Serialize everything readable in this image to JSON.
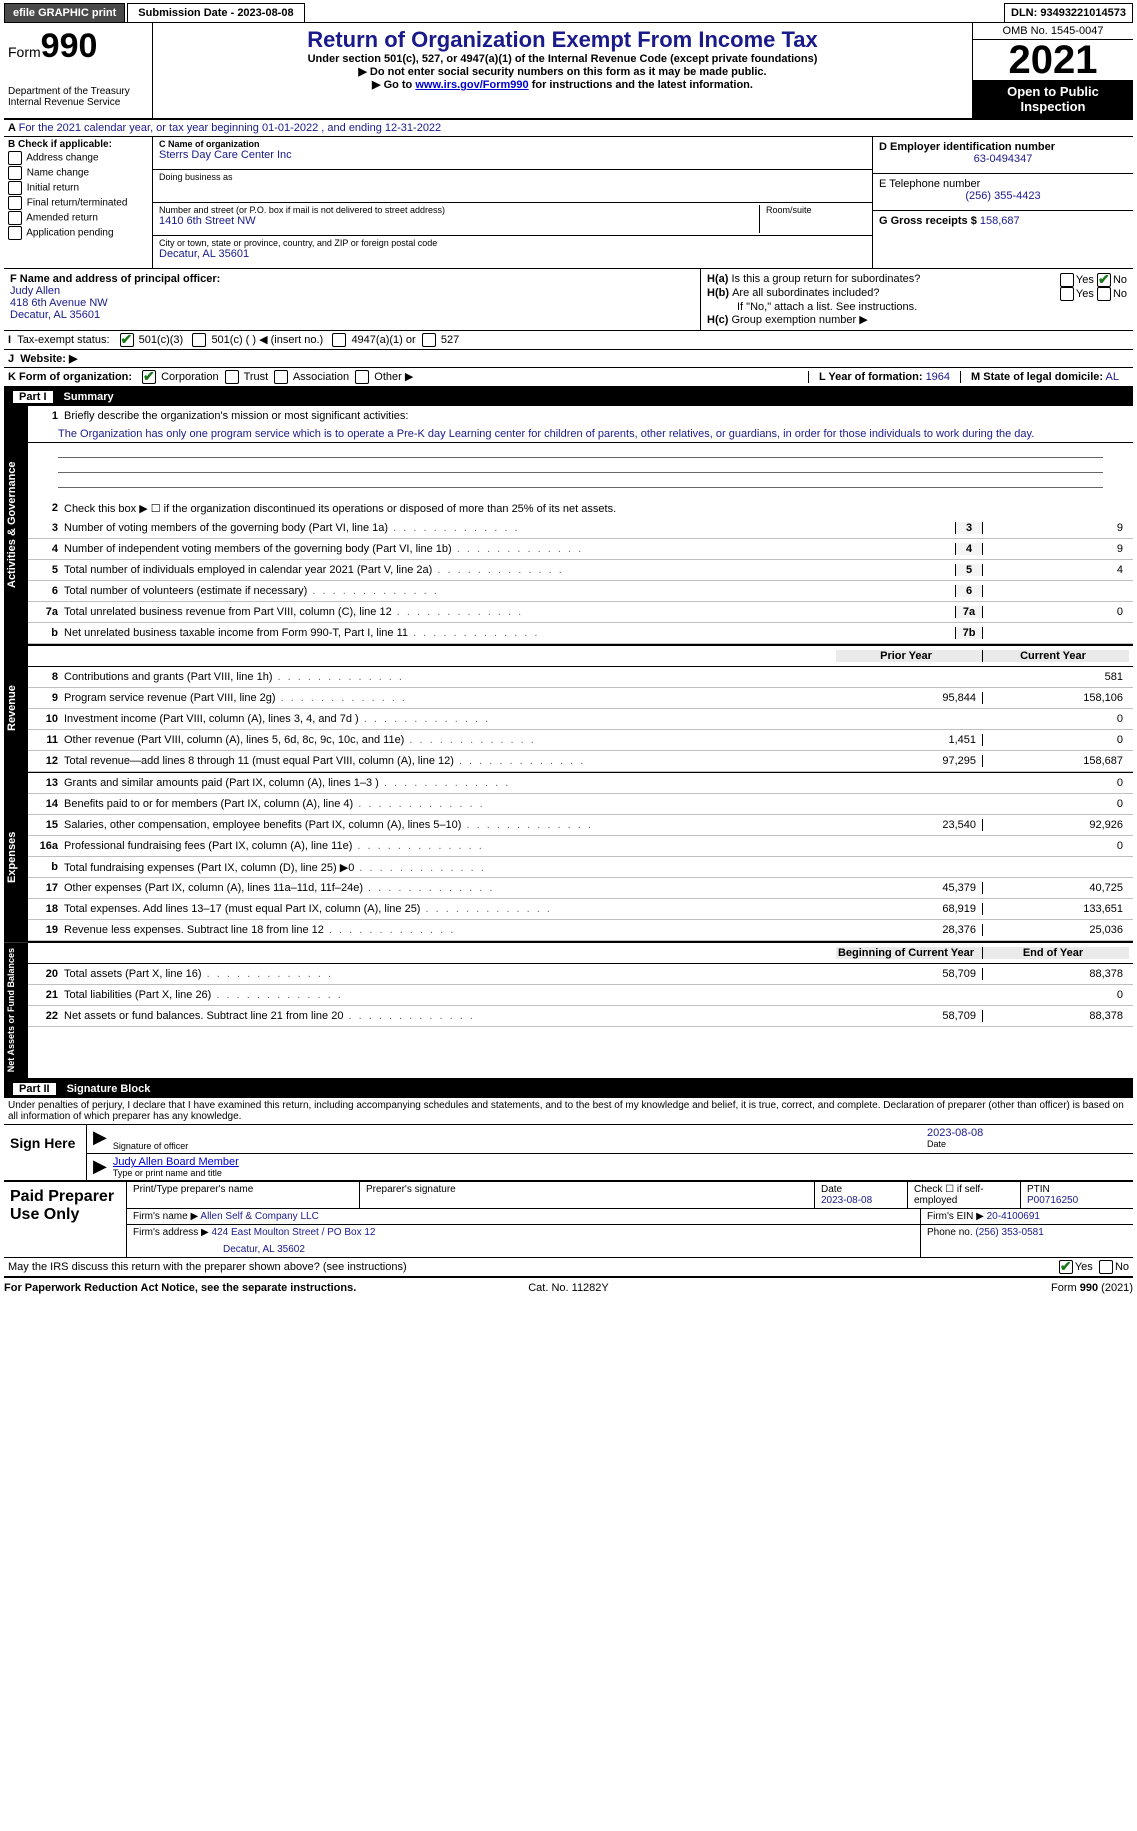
{
  "topbar": {
    "efile": "efile GRAPHIC print",
    "submission_label": "Submission Date - 2023-08-08",
    "dln": "DLN: 93493221014573"
  },
  "header": {
    "form_prefix": "Form",
    "form_number": "990",
    "dept": "Department of the Treasury",
    "irs": "Internal Revenue Service",
    "title": "Return of Organization Exempt From Income Tax",
    "subtitle": "Under section 501(c), 527, or 4947(a)(1) of the Internal Revenue Code (except private foundations)",
    "note1": "Do not enter social security numbers on this form as it may be made public.",
    "note2_prefix": "Go to ",
    "note2_link": "www.irs.gov/Form990",
    "note2_suffix": " for instructions and the latest information.",
    "omb": "OMB No. 1545-0047",
    "year": "2021",
    "opentag": "Open to Public Inspection"
  },
  "line_a": "For the 2021 calendar year, or tax year beginning 01-01-2022   , and ending 12-31-2022",
  "boxB": {
    "header": "B Check if applicable:",
    "items": [
      "Address change",
      "Name change",
      "Initial return",
      "Final return/terminated",
      "Amended return",
      "Application pending"
    ]
  },
  "boxC": {
    "label_c": "C Name of organization",
    "org_name": "Sterrs Day Care Center Inc",
    "dba_label": "Doing business as",
    "addr_label": "Number and street (or P.O. box if mail is not delivered to street address)",
    "room_label": "Room/suite",
    "addr": "1410 6th Street NW",
    "city_label": "City or town, state or province, country, and ZIP or foreign postal code",
    "city": "Decatur, AL  35601"
  },
  "boxD": {
    "label": "D Employer identification number",
    "ein": "63-0494347"
  },
  "boxE": {
    "label": "E Telephone number",
    "phone": "(256) 355-4423"
  },
  "boxG": {
    "label": "G Gross receipts $",
    "amount": "158,687"
  },
  "boxF": {
    "label": "F  Name and address of principal officer:",
    "name": "Judy Allen",
    "addr1": "418 6th Avenue NW",
    "addr2": "Decatur, AL  35601"
  },
  "boxH": {
    "ha": "Is this a group return for subordinates?",
    "hb": "Are all subordinates included?",
    "hb_note": "If \"No,\" attach a list. See instructions.",
    "hc": "Group exemption number ▶",
    "yes": "Yes",
    "no": "No"
  },
  "boxI": {
    "label": "Tax-exempt status:",
    "o1": "501(c)(3)",
    "o2": "501(c) (  ) ◀ (insert no.)",
    "o3": "4947(a)(1) or",
    "o4": "527"
  },
  "boxJ": {
    "label": "Website: ▶"
  },
  "boxK": {
    "label": "K Form of organization:",
    "o1": "Corporation",
    "o2": "Trust",
    "o3": "Association",
    "o4": "Other ▶"
  },
  "boxL": {
    "label": "L Year of formation:",
    "val": "1964"
  },
  "boxM": {
    "label": "M State of legal domicile:",
    "val": "AL"
  },
  "part1": {
    "label": "Part I",
    "title": "Summary",
    "q1": "Briefly describe the organization's mission or most significant activities:",
    "mission": "The Organization has only one program service which is to operate a Pre-K day Learning center for children of parents, other relatives, or guardians, in order for those individuals to work during the day.",
    "q2": "Check this box ▶ ☐ if the organization discontinued its operations or disposed of more than 25% of its net assets."
  },
  "governance_tab": "Activities & Governance",
  "revenue_tab": "Revenue",
  "expenses_tab": "Expenses",
  "netassets_tab": "Net Assets or Fund Balances",
  "lines_gov": [
    {
      "n": "3",
      "d": "Number of voting members of the governing body (Part VI, line 1a)",
      "box": "3",
      "v": "9"
    },
    {
      "n": "4",
      "d": "Number of independent voting members of the governing body (Part VI, line 1b)",
      "box": "4",
      "v": "9"
    },
    {
      "n": "5",
      "d": "Total number of individuals employed in calendar year 2021 (Part V, line 2a)",
      "box": "5",
      "v": "4"
    },
    {
      "n": "6",
      "d": "Total number of volunteers (estimate if necessary)",
      "box": "6",
      "v": ""
    },
    {
      "n": "7a",
      "d": "Total unrelated business revenue from Part VIII, column (C), line 12",
      "box": "7a",
      "v": "0"
    },
    {
      "n": "b",
      "d": "Net unrelated business taxable income from Form 990-T, Part I, line 11",
      "box": "7b",
      "v": ""
    }
  ],
  "col_hdr": {
    "prior": "Prior Year",
    "current": "Current Year"
  },
  "lines_rev": [
    {
      "n": "8",
      "d": "Contributions and grants (Part VIII, line 1h)",
      "p": "",
      "c": "581"
    },
    {
      "n": "9",
      "d": "Program service revenue (Part VIII, line 2g)",
      "p": "95,844",
      "c": "158,106"
    },
    {
      "n": "10",
      "d": "Investment income (Part VIII, column (A), lines 3, 4, and 7d )",
      "p": "",
      "c": "0"
    },
    {
      "n": "11",
      "d": "Other revenue (Part VIII, column (A), lines 5, 6d, 8c, 9c, 10c, and 11e)",
      "p": "1,451",
      "c": "0"
    },
    {
      "n": "12",
      "d": "Total revenue—add lines 8 through 11 (must equal Part VIII, column (A), line 12)",
      "p": "97,295",
      "c": "158,687"
    }
  ],
  "lines_exp": [
    {
      "n": "13",
      "d": "Grants and similar amounts paid (Part IX, column (A), lines 1–3 )",
      "p": "",
      "c": "0"
    },
    {
      "n": "14",
      "d": "Benefits paid to or for members (Part IX, column (A), line 4)",
      "p": "",
      "c": "0"
    },
    {
      "n": "15",
      "d": "Salaries, other compensation, employee benefits (Part IX, column (A), lines 5–10)",
      "p": "23,540",
      "c": "92,926"
    },
    {
      "n": "16a",
      "d": "Professional fundraising fees (Part IX, column (A), line 11e)",
      "p": "",
      "c": "0"
    },
    {
      "n": "b",
      "d": "Total fundraising expenses (Part IX, column (D), line 25) ▶0",
      "p": "",
      "c": "",
      "shade": true
    },
    {
      "n": "17",
      "d": "Other expenses (Part IX, column (A), lines 11a–11d, 11f–24e)",
      "p": "45,379",
      "c": "40,725"
    },
    {
      "n": "18",
      "d": "Total expenses. Add lines 13–17 (must equal Part IX, column (A), line 25)",
      "p": "68,919",
      "c": "133,651"
    },
    {
      "n": "19",
      "d": "Revenue less expenses. Subtract line 18 from line 12",
      "p": "28,376",
      "c": "25,036"
    }
  ],
  "col_hdr2": {
    "begin": "Beginning of Current Year",
    "end": "End of Year"
  },
  "lines_net": [
    {
      "n": "20",
      "d": "Total assets (Part X, line 16)",
      "p": "58,709",
      "c": "88,378"
    },
    {
      "n": "21",
      "d": "Total liabilities (Part X, line 26)",
      "p": "",
      "c": "0"
    },
    {
      "n": "22",
      "d": "Net assets or fund balances. Subtract line 21 from line 20",
      "p": "58,709",
      "c": "88,378"
    }
  ],
  "part2": {
    "label": "Part II",
    "title": "Signature Block",
    "perjury": "Under penalties of perjury, I declare that I have examined this return, including accompanying schedules and statements, and to the best of my knowledge and belief, it is true, correct, and complete. Declaration of preparer (other than officer) is based on all information of which preparer has any knowledge."
  },
  "sign": {
    "here": "Sign Here",
    "sig_officer": "Signature of officer",
    "date": "Date",
    "date_val": "2023-08-08",
    "name_title": "Judy Allen  Board Member",
    "name_label": "Type or print name and title"
  },
  "paid": {
    "label": "Paid Preparer Use Only",
    "print_label": "Print/Type preparer's name",
    "sig_label": "Preparer's signature",
    "date_label": "Date",
    "date_val": "2023-08-08",
    "check_label": "Check ☐ if self-employed",
    "ptin_label": "PTIN",
    "ptin": "P00716250",
    "firm_name_label": "Firm's name    ▶",
    "firm_name": "Allen Self & Company LLC",
    "firm_ein_label": "Firm's EIN ▶",
    "firm_ein": "20-4100691",
    "firm_addr_label": "Firm's address ▶",
    "firm_addr": "424 East Moulton Street / PO Box 12",
    "firm_city": "Decatur, AL  35602",
    "phone_label": "Phone no.",
    "phone": "(256) 353-0581"
  },
  "discuss": {
    "q": "May the IRS discuss this return with the preparer shown above? (see instructions)",
    "yes": "Yes",
    "no": "No"
  },
  "footer": {
    "left": "For Paperwork Reduction Act Notice, see the separate instructions.",
    "mid": "Cat. No. 11282Y",
    "right": "Form 990 (2021)"
  }
}
